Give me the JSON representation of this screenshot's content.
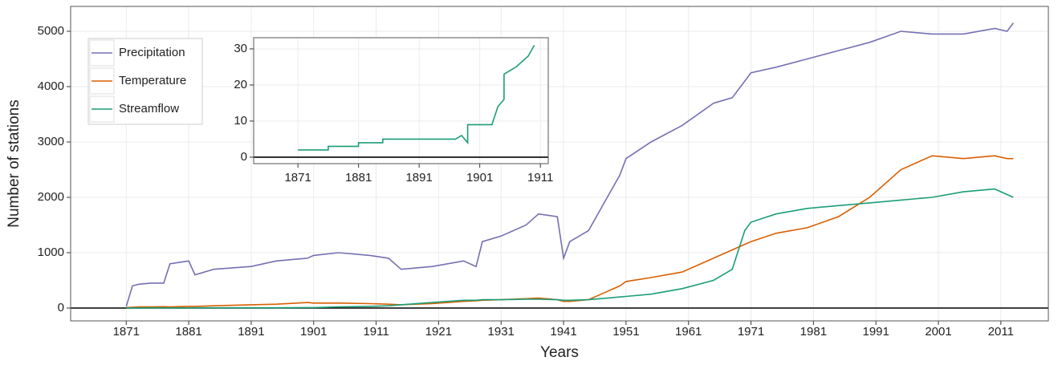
{
  "chart_data": [
    {
      "type": "line",
      "xlabel": "Years",
      "ylabel": "Number of stations",
      "x": [
        1871,
        1872,
        1873,
        1875,
        1877,
        1878,
        1881,
        1882,
        1885,
        1891,
        1895,
        1900,
        1901,
        1905,
        1910,
        1913,
        1915,
        1920,
        1925,
        1927,
        1928,
        1931,
        1935,
        1937,
        1940,
        1941,
        1942,
        1945,
        1948,
        1950,
        1951,
        1955,
        1960,
        1965,
        1968,
        1970,
        1971,
        1975,
        1980,
        1985,
        1990,
        1995,
        2000,
        2005,
        2010,
        2012,
        2013
      ],
      "series": [
        {
          "name": "Precipitation",
          "color": "#7570b3",
          "values": [
            30,
            400,
            430,
            450,
            450,
            800,
            850,
            600,
            700,
            750,
            850,
            900,
            950,
            1000,
            950,
            900,
            700,
            750,
            850,
            750,
            1200,
            1300,
            1500,
            1700,
            1650,
            900,
            1200,
            1400,
            2000,
            2400,
            2700,
            3000,
            3300,
            3700,
            3800,
            4100,
            4250,
            4350,
            4500,
            4650,
            4800,
            5000,
            4950,
            4950,
            5050,
            5000,
            5150
          ]
        },
        {
          "name": "Temperature",
          "color": "#d95f02",
          "values": [
            10,
            15,
            20,
            20,
            25,
            20,
            30,
            30,
            40,
            60,
            70,
            100,
            90,
            90,
            80,
            70,
            60,
            80,
            120,
            130,
            140,
            150,
            170,
            180,
            150,
            120,
            120,
            150,
            300,
            400,
            480,
            550,
            650,
            900,
            1050,
            1150,
            1200,
            1350,
            1450,
            1650,
            2000,
            2500,
            2750,
            2700,
            2750,
            2700,
            2700
          ]
        },
        {
          "name": "Streamflow",
          "color": "#1b9e77",
          "values": [
            2,
            2,
            2,
            3,
            3,
            3,
            3,
            4,
            4,
            4,
            4,
            8,
            9,
            20,
            30,
            40,
            60,
            100,
            140,
            140,
            150,
            150,
            160,
            160,
            150,
            140,
            140,
            150,
            180,
            200,
            210,
            250,
            350,
            500,
            700,
            1400,
            1550,
            1700,
            1800,
            1850,
            1900,
            1950,
            2000,
            2100,
            2150,
            2050,
            2000
          ]
        }
      ],
      "xlim": [
        1862.1,
        2018.6
      ],
      "ylim": [
        -232,
        5449
      ],
      "xticks": [
        1871,
        1881,
        1891,
        1901,
        1911,
        1921,
        1931,
        1941,
        1951,
        1961,
        1971,
        1981,
        1991,
        2001,
        2011
      ],
      "yticks": [
        0,
        1000,
        2000,
        3000,
        4000,
        5000
      ],
      "grid": true,
      "legend": "top-left"
    },
    {
      "type": "line",
      "x": [
        1871,
        1876,
        1876,
        1881,
        1881,
        1885,
        1885,
        1895,
        1897,
        1898,
        1899,
        1899,
        1903,
        1904,
        1905,
        1905,
        1907,
        1909,
        1910
      ],
      "series": [
        {
          "color": "#1b9e77",
          "values": [
            2,
            2,
            3,
            3,
            4,
            4,
            5,
            5,
            5,
            6,
            4,
            9,
            9,
            14,
            16,
            23,
            25,
            28,
            31
          ]
        }
      ],
      "xlim": [
        1863.7,
        1912.3
      ],
      "ylim": [
        -1.8,
        33.1
      ],
      "xticks": [
        1871,
        1881,
        1891,
        1901,
        1911
      ],
      "yticks": [
        0,
        10,
        20,
        30
      ],
      "grid": true
    }
  ]
}
